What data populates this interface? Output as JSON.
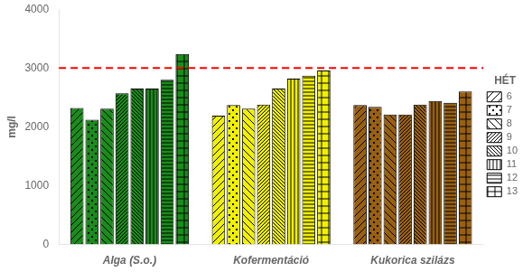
{
  "chart_data": {
    "type": "bar",
    "ylabel": "mg/l",
    "categories": [
      "Alga (S.o.)",
      "Kofermentáció",
      "Kukorica szilázs"
    ],
    "series": [
      {
        "name": "6",
        "colors": [
          "#1a8c1a",
          "#f0f000",
          "#996010"
        ],
        "values": [
          2320,
          2190,
          2370
        ]
      },
      {
        "name": "7",
        "colors": [
          "#1a8c1a",
          "#f0f000",
          "#996010"
        ],
        "values": [
          2120,
          2370,
          2340
        ]
      },
      {
        "name": "8",
        "colors": [
          "#1a8c1a",
          "#f0f000",
          "#996010"
        ],
        "values": [
          2310,
          2310,
          2210
        ]
      },
      {
        "name": "9",
        "colors": [
          "#1a8c1a",
          "#f0f000",
          "#996010"
        ],
        "values": [
          2570,
          2380,
          2210
        ]
      },
      {
        "name": "10",
        "colors": [
          "#1a8c1a",
          "#f0f000",
          "#996010"
        ],
        "values": [
          2650,
          2650,
          2380
        ]
      },
      {
        "name": "11",
        "colors": [
          "#1a8c1a",
          "#f0f000",
          "#996010"
        ],
        "values": [
          2650,
          2820,
          2440
        ]
      },
      {
        "name": "12",
        "colors": [
          "#1a8c1a",
          "#f0f000",
          "#996010"
        ],
        "values": [
          2800,
          2870,
          2410
        ]
      },
      {
        "name": "13",
        "colors": [
          "#1a8c1a",
          "#f0f000",
          "#996010"
        ],
        "values": [
          3240,
          2960,
          2600
        ]
      }
    ],
    "ylim": [
      0,
      4000
    ],
    "yticks": [
      0,
      1000,
      2000,
      3000,
      4000
    ],
    "grid": false,
    "legend": "right",
    "legend_title": "HÉT",
    "reference_lines": [
      {
        "value": 3000,
        "color": "#ff0000",
        "line_style": "dashed"
      }
    ]
  }
}
